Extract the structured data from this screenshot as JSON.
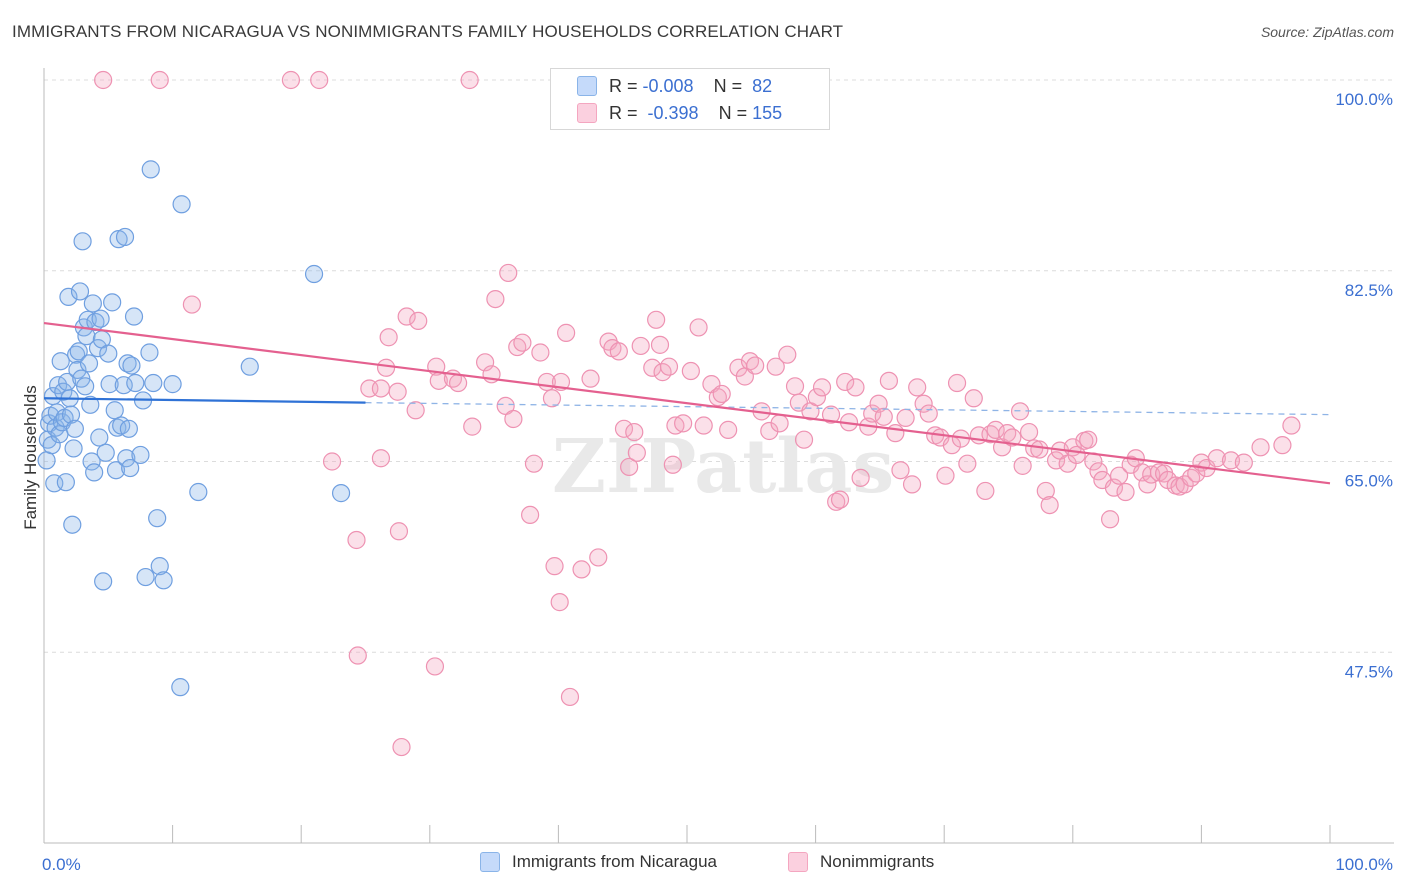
{
  "title": "IMMIGRANTS FROM NICARAGUA VS NONIMMIGRANTS FAMILY HOUSEHOLDS CORRELATION CHART",
  "source": "Source: ZipAtlas.com",
  "watermark": "ZIPatlas",
  "colors": {
    "blue": "#8ab4e8",
    "blue_line": "#2f72d6",
    "pink": "#f4a6c0",
    "pink_line": "#e4608f",
    "axis_text": "#3b6fd1"
  },
  "stats": {
    "blue": {
      "r_label": "R =",
      "r_value": "-0.008",
      "n_label": "N =",
      "n_value": "82"
    },
    "pink": {
      "r_label": "R =",
      "r_value": "-0.398",
      "n_label": "N =",
      "n_value": "155"
    }
  },
  "legend": {
    "blue": "Immigrants from Nicaragua",
    "pink": "Nonimmigrants"
  },
  "chart_data": {
    "type": "scatter",
    "xlabel": "",
    "ylabel": "Family Households",
    "xlim": [
      0,
      100
    ],
    "ylim": [
      30,
      100
    ],
    "x_tick_labels": [
      {
        "value": 0,
        "label": "0.0%"
      },
      {
        "value": 100,
        "label": "100.0%"
      }
    ],
    "y_tick_labels": [
      {
        "value": 100,
        "label": "100.0%"
      },
      {
        "value": 82.5,
        "label": "82.5%"
      },
      {
        "value": 65,
        "label": "65.0%"
      },
      {
        "value": 47.5,
        "label": "47.5%"
      }
    ],
    "series": [
      {
        "name": "Immigrants from Nicaragua",
        "color": "#8ab4e8",
        "trend": {
          "x0": 0,
          "y0": 70.8,
          "x1": 25,
          "y1": 70.4,
          "dash_to_x": 100,
          "dash_to_y": 69.3
        },
        "points": [
          [
            0.2,
            65.1
          ],
          [
            0.3,
            67.0
          ],
          [
            0.4,
            68.5
          ],
          [
            0.5,
            69.2
          ],
          [
            0.6,
            66.5
          ],
          [
            0.7,
            71.0
          ],
          [
            0.8,
            63.0
          ],
          [
            0.9,
            68.1
          ],
          [
            1.0,
            69.5
          ],
          [
            1.1,
            72.0
          ],
          [
            1.2,
            67.5
          ],
          [
            1.3,
            74.2
          ],
          [
            1.4,
            68.6
          ],
          [
            1.5,
            71.4
          ],
          [
            1.6,
            69.0
          ],
          [
            1.7,
            63.1
          ],
          [
            1.8,
            72.3
          ],
          [
            1.9,
            80.1
          ],
          [
            2.0,
            70.8
          ],
          [
            2.1,
            69.3
          ],
          [
            2.2,
            59.2
          ],
          [
            2.3,
            66.2
          ],
          [
            2.4,
            68.0
          ],
          [
            2.5,
            74.8
          ],
          [
            2.6,
            73.4
          ],
          [
            2.7,
            75.1
          ],
          [
            2.8,
            80.6
          ],
          [
            2.9,
            72.6
          ],
          [
            3.0,
            85.2
          ],
          [
            3.1,
            77.3
          ],
          [
            3.2,
            71.9
          ],
          [
            3.3,
            76.5
          ],
          [
            3.4,
            78.0
          ],
          [
            3.5,
            74.0
          ],
          [
            3.6,
            70.2
          ],
          [
            3.7,
            65.0
          ],
          [
            3.8,
            79.5
          ],
          [
            3.9,
            64.0
          ],
          [
            4.0,
            77.8
          ],
          [
            4.2,
            75.4
          ],
          [
            4.3,
            67.2
          ],
          [
            4.4,
            78.1
          ],
          [
            4.5,
            76.2
          ],
          [
            4.6,
            54.0
          ],
          [
            4.8,
            65.8
          ],
          [
            5.0,
            74.9
          ],
          [
            5.1,
            72.1
          ],
          [
            5.3,
            79.6
          ],
          [
            5.5,
            69.7
          ],
          [
            5.6,
            64.2
          ],
          [
            5.7,
            68.1
          ],
          [
            5.8,
            85.4
          ],
          [
            6.0,
            68.3
          ],
          [
            6.2,
            72.0
          ],
          [
            6.3,
            85.6
          ],
          [
            6.4,
            65.3
          ],
          [
            6.5,
            74.0
          ],
          [
            6.6,
            68.0
          ],
          [
            6.7,
            64.4
          ],
          [
            6.8,
            73.8
          ],
          [
            7.0,
            78.3
          ],
          [
            7.1,
            72.2
          ],
          [
            7.5,
            65.6
          ],
          [
            7.7,
            70.6
          ],
          [
            7.9,
            54.4
          ],
          [
            8.2,
            75.0
          ],
          [
            8.3,
            91.8
          ],
          [
            8.5,
            72.2
          ],
          [
            8.8,
            59.8
          ],
          [
            9.0,
            55.4
          ],
          [
            9.3,
            54.1
          ],
          [
            10.0,
            72.1
          ],
          [
            10.6,
            44.3
          ],
          [
            10.7,
            88.6
          ],
          [
            12.0,
            62.2
          ],
          [
            16.0,
            73.7
          ],
          [
            21.0,
            82.2
          ],
          [
            23.1,
            62.1
          ]
        ]
      },
      {
        "name": "Nonimmigrants",
        "color": "#f4a6c0",
        "trend": {
          "x0": 0,
          "y0": 77.7,
          "x1": 100,
          "y1": 63.0
        },
        "points": [
          [
            4.6,
            100
          ],
          [
            9.0,
            100
          ],
          [
            19.2,
            100
          ],
          [
            21.4,
            100
          ],
          [
            33.1,
            100
          ],
          [
            11.5,
            79.4
          ],
          [
            22.4,
            65.0
          ],
          [
            24.3,
            57.8
          ],
          [
            24.4,
            47.2
          ],
          [
            25.3,
            71.7
          ],
          [
            26.2,
            71.7
          ],
          [
            26.2,
            65.3
          ],
          [
            26.6,
            73.6
          ],
          [
            26.8,
            76.4
          ],
          [
            27.5,
            71.4
          ],
          [
            27.6,
            58.6
          ],
          [
            27.8,
            38.8
          ],
          [
            28.9,
            69.7
          ],
          [
            28.2,
            78.3
          ],
          [
            29.1,
            77.9
          ],
          [
            30.4,
            46.2
          ],
          [
            30.5,
            73.7
          ],
          [
            30.7,
            72.4
          ],
          [
            31.8,
            72.6
          ],
          [
            32.2,
            72.2
          ],
          [
            33.3,
            68.2
          ],
          [
            34.3,
            74.1
          ],
          [
            34.8,
            73.0
          ],
          [
            35.1,
            79.9
          ],
          [
            35.9,
            70.1
          ],
          [
            36.1,
            82.3
          ],
          [
            36.5,
            68.9
          ],
          [
            36.8,
            75.5
          ],
          [
            37.2,
            75.9
          ],
          [
            38.1,
            64.8
          ],
          [
            37.8,
            60.1
          ],
          [
            38.6,
            75.0
          ],
          [
            39.1,
            72.3
          ],
          [
            39.5,
            70.8
          ],
          [
            39.7,
            55.4
          ],
          [
            40.1,
            52.1
          ],
          [
            40.2,
            72.3
          ],
          [
            40.6,
            76.8
          ],
          [
            40.9,
            43.4
          ],
          [
            41.8,
            55.1
          ],
          [
            42.5,
            72.6
          ],
          [
            43.1,
            56.2
          ],
          [
            43.9,
            76.0
          ],
          [
            44.2,
            75.4
          ],
          [
            44.7,
            75.1
          ],
          [
            45.1,
            68.0
          ],
          [
            45.5,
            64.5
          ],
          [
            45.9,
            67.7
          ],
          [
            46.1,
            65.8
          ],
          [
            46.4,
            75.6
          ],
          [
            47.3,
            73.6
          ],
          [
            47.6,
            78.0
          ],
          [
            47.9,
            75.7
          ],
          [
            48.1,
            73.2
          ],
          [
            48.6,
            73.7
          ],
          [
            48.9,
            64.7
          ],
          [
            49.1,
            68.3
          ],
          [
            49.7,
            68.5
          ],
          [
            50.3,
            73.3
          ],
          [
            50.9,
            77.3
          ],
          [
            51.3,
            68.3
          ],
          [
            51.9,
            72.1
          ],
          [
            52.4,
            70.9
          ],
          [
            52.7,
            71.2
          ],
          [
            53.2,
            67.9
          ],
          [
            54.0,
            73.6
          ],
          [
            54.5,
            72.8
          ],
          [
            54.9,
            74.2
          ],
          [
            55.3,
            73.8
          ],
          [
            55.8,
            69.6
          ],
          [
            56.4,
            67.8
          ],
          [
            56.9,
            73.7
          ],
          [
            57.2,
            68.5
          ],
          [
            57.8,
            74.8
          ],
          [
            58.4,
            71.9
          ],
          [
            58.7,
            70.4
          ],
          [
            59.1,
            67.0
          ],
          [
            59.6,
            69.6
          ],
          [
            60.1,
            70.9
          ],
          [
            60.5,
            71.8
          ],
          [
            61.2,
            69.3
          ],
          [
            61.6,
            61.3
          ],
          [
            61.9,
            61.5
          ],
          [
            62.3,
            72.3
          ],
          [
            62.6,
            68.6
          ],
          [
            63.1,
            71.8
          ],
          [
            63.5,
            63.5
          ],
          [
            64.1,
            68.2
          ],
          [
            64.4,
            69.4
          ],
          [
            64.9,
            70.3
          ],
          [
            65.3,
            69.1
          ],
          [
            65.7,
            72.4
          ],
          [
            66.2,
            67.6
          ],
          [
            66.6,
            64.2
          ],
          [
            67.0,
            69.0
          ],
          [
            67.5,
            62.9
          ],
          [
            67.9,
            71.8
          ],
          [
            68.4,
            70.3
          ],
          [
            68.8,
            69.4
          ],
          [
            69.3,
            67.4
          ],
          [
            69.7,
            67.2
          ],
          [
            70.1,
            63.7
          ],
          [
            70.6,
            66.5
          ],
          [
            71.0,
            72.2
          ],
          [
            71.3,
            67.1
          ],
          [
            71.8,
            64.8
          ],
          [
            72.3,
            70.8
          ],
          [
            72.7,
            67.4
          ],
          [
            73.2,
            62.3
          ],
          [
            73.6,
            67.5
          ],
          [
            74.0,
            67.9
          ],
          [
            74.5,
            66.3
          ],
          [
            74.9,
            67.6
          ],
          [
            75.3,
            67.2
          ],
          [
            75.9,
            69.6
          ],
          [
            76.1,
            64.6
          ],
          [
            76.6,
            67.7
          ],
          [
            77.0,
            66.2
          ],
          [
            77.4,
            66.1
          ],
          [
            77.9,
            62.3
          ],
          [
            78.2,
            61.0
          ],
          [
            78.7,
            65.1
          ],
          [
            79.0,
            66.0
          ],
          [
            79.6,
            64.8
          ],
          [
            80.0,
            66.3
          ],
          [
            80.3,
            65.6
          ],
          [
            80.9,
            66.9
          ],
          [
            81.2,
            67.0
          ],
          [
            81.6,
            65.0
          ],
          [
            82.0,
            64.1
          ],
          [
            82.3,
            63.3
          ],
          [
            82.9,
            59.7
          ],
          [
            83.2,
            62.6
          ],
          [
            83.6,
            63.7
          ],
          [
            84.1,
            62.2
          ],
          [
            84.5,
            64.7
          ],
          [
            84.9,
            65.3
          ],
          [
            85.4,
            64.0
          ],
          [
            85.8,
            62.9
          ],
          [
            86.1,
            63.8
          ],
          [
            86.7,
            64.0
          ],
          [
            87.1,
            63.9
          ],
          [
            87.4,
            63.3
          ],
          [
            88.0,
            62.8
          ],
          [
            88.3,
            62.7
          ],
          [
            88.7,
            62.9
          ],
          [
            89.2,
            63.5
          ],
          [
            89.6,
            63.9
          ],
          [
            90.0,
            64.9
          ],
          [
            90.4,
            64.4
          ],
          [
            91.2,
            65.3
          ],
          [
            92.3,
            65.1
          ],
          [
            93.3,
            64.9
          ],
          [
            94.6,
            66.3
          ],
          [
            96.3,
            66.5
          ],
          [
            97.0,
            68.3
          ]
        ]
      }
    ]
  }
}
